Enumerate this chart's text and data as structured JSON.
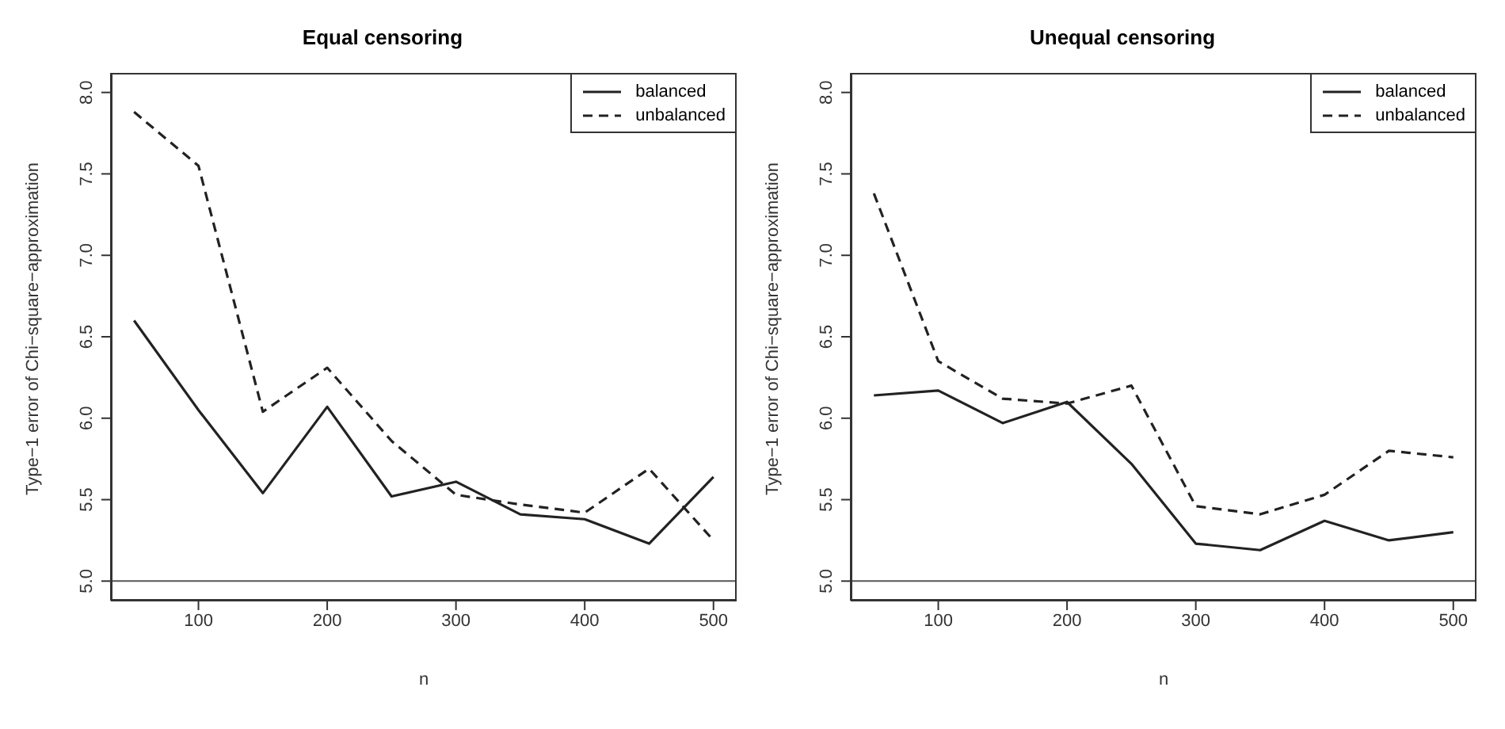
{
  "chart_data": [
    {
      "type": "line",
      "title": "Equal censoring",
      "xlabel": "n",
      "ylabel": "Type−1 error of Chi−square−approximation",
      "x": [
        50,
        100,
        150,
        200,
        250,
        300,
        350,
        400,
        450,
        500
      ],
      "xlim": [
        32,
        518
      ],
      "xticks": [
        100,
        200,
        300,
        400,
        500
      ],
      "ylim": [
        4.88,
        8.12
      ],
      "yticks": [
        {
          "value": 5,
          "label": "5.0"
        },
        {
          "value": 5.5,
          "label": "5.5"
        },
        {
          "value": 6,
          "label": "6.0"
        },
        {
          "value": 6.5,
          "label": "6.5"
        },
        {
          "value": 7,
          "label": "7.0"
        },
        {
          "value": 7.5,
          "label": "7.5"
        },
        {
          "value": 8,
          "label": "8.0"
        }
      ],
      "grid": false,
      "legend": "top right",
      "marker": "none",
      "series": [
        {
          "name": "balanced",
          "color": "#222222",
          "line_style": "solid",
          "values": [
            6.6,
            6.05,
            5.54,
            6.07,
            5.52,
            5.61,
            5.41,
            5.38,
            5.23,
            5.64
          ]
        },
        {
          "name": "unbalanced",
          "color": "#222222",
          "line_style": "dashed",
          "values": [
            7.88,
            7.55,
            6.04,
            6.31,
            5.86,
            5.53,
            5.47,
            5.42,
            5.69,
            5.25
          ]
        }
      ],
      "ref_lines": [
        {
          "axis": "y",
          "value": 5,
          "color": "#555555"
        }
      ]
    },
    {
      "type": "line",
      "title": "Unequal censoring",
      "xlabel": "n",
      "ylabel": "Type−1 error of Chi−square−approximation",
      "x": [
        50,
        100,
        150,
        200,
        250,
        300,
        350,
        400,
        450,
        500
      ],
      "xlim": [
        32,
        518
      ],
      "xticks": [
        100,
        200,
        300,
        400,
        500
      ],
      "ylim": [
        4.88,
        8.12
      ],
      "yticks": [
        {
          "value": 5,
          "label": "5.0"
        },
        {
          "value": 5.5,
          "label": "5.5"
        },
        {
          "value": 6,
          "label": "6.0"
        },
        {
          "value": 6.5,
          "label": "6.5"
        },
        {
          "value": 7,
          "label": "7.0"
        },
        {
          "value": 7.5,
          "label": "7.5"
        },
        {
          "value": 8,
          "label": "8.0"
        }
      ],
      "grid": false,
      "legend": "top right",
      "marker": "none",
      "series": [
        {
          "name": "balanced",
          "color": "#222222",
          "line_style": "solid",
          "values": [
            6.14,
            6.17,
            5.97,
            6.1,
            5.72,
            5.23,
            5.19,
            5.37,
            5.25,
            5.3
          ]
        },
        {
          "name": "unbalanced",
          "color": "#222222",
          "line_style": "dashed",
          "values": [
            7.38,
            6.35,
            6.12,
            6.09,
            6.2,
            5.46,
            5.41,
            5.53,
            5.8,
            5.76
          ]
        }
      ],
      "ref_lines": [
        {
          "axis": "y",
          "value": 5,
          "color": "#555555"
        }
      ]
    }
  ]
}
